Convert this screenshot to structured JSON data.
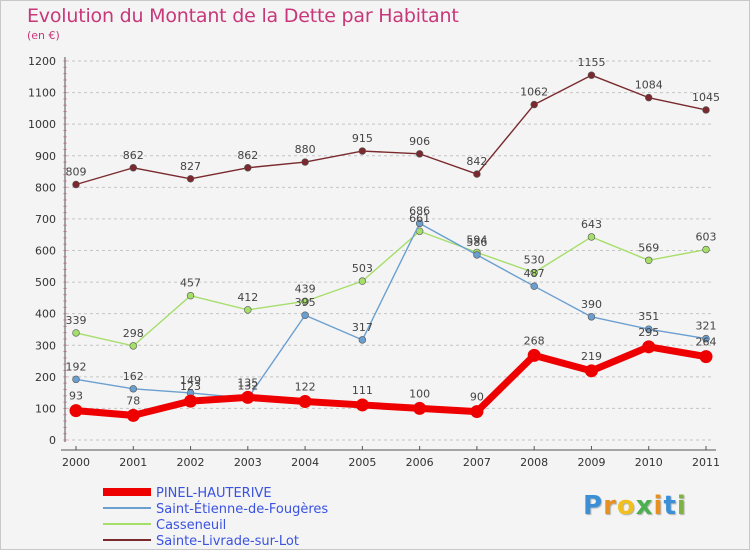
{
  "title": "Evolution du Montant de la Dette par Habitant",
  "subtitle": "(en €)",
  "brand": {
    "letters": [
      "P",
      "r",
      "o",
      "x",
      "i",
      "t",
      "i"
    ],
    "colors": [
      "#3a8fd6",
      "#e8901f",
      "#f0c020",
      "#4caf50",
      "#e8901f",
      "#3a8fd6",
      "#7cb342"
    ]
  },
  "chart_data": {
    "type": "line",
    "categories": [
      "2000",
      "2001",
      "2002",
      "2003",
      "2004",
      "2005",
      "2006",
      "2007",
      "2008",
      "2009",
      "2010",
      "2011"
    ],
    "ylim": [
      0,
      1200
    ],
    "yticks": [
      0,
      100,
      200,
      300,
      400,
      500,
      600,
      700,
      800,
      900,
      1000,
      1100,
      1200
    ],
    "grid": "horizontal-dashed",
    "legend_position": "bottom-left",
    "series": [
      {
        "name": "PINEL-HAUTERIVE",
        "color": "#ee0000",
        "values": [
          93,
          78,
          123,
          135,
          122,
          111,
          100,
          90,
          268,
          219,
          295,
          264
        ]
      },
      {
        "name": "Saint-Étienne-de-Fougères",
        "color": "#6a9fd0",
        "values": [
          192,
          162,
          149,
          132,
          395,
          317,
          686,
          586,
          487,
          390,
          351,
          321
        ]
      },
      {
        "name": "Casseneuil",
        "color": "#a6de6a",
        "values": [
          339,
          298,
          457,
          412,
          439,
          503,
          661,
          594,
          530,
          643,
          569,
          603
        ]
      },
      {
        "name": "Sainte-Livrade-sur-Lot",
        "color": "#7a2a2e",
        "values": [
          809,
          862,
          827,
          862,
          880,
          915,
          906,
          842,
          1062,
          1155,
          1084,
          1045
        ]
      }
    ]
  }
}
